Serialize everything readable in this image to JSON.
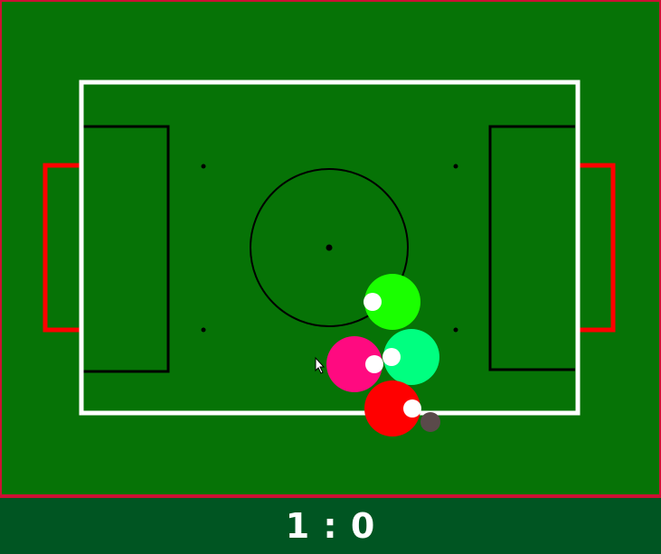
{
  "score": {
    "text": "1 : 0"
  },
  "colors": {
    "grass": "#067306",
    "field_border": "#cc1133",
    "pitch_lines": "#ffffff",
    "markings": "#000000",
    "goals": "#ff0000",
    "scorebar": "#005522",
    "score_text": "#ffffff"
  },
  "players": [
    {
      "name": "player-lime",
      "color": "#1aff00",
      "facing": "left"
    },
    {
      "name": "player-spring-green",
      "color": "#00ff80",
      "facing": "left"
    },
    {
      "name": "player-pink",
      "color": "#ff0a80",
      "facing": "right"
    },
    {
      "name": "player-red",
      "color": "#ff0000",
      "facing": "right"
    }
  ],
  "ball": {
    "color": "#5a4a4a"
  },
  "icons": {
    "cursor": "mouse-pointer-icon"
  }
}
